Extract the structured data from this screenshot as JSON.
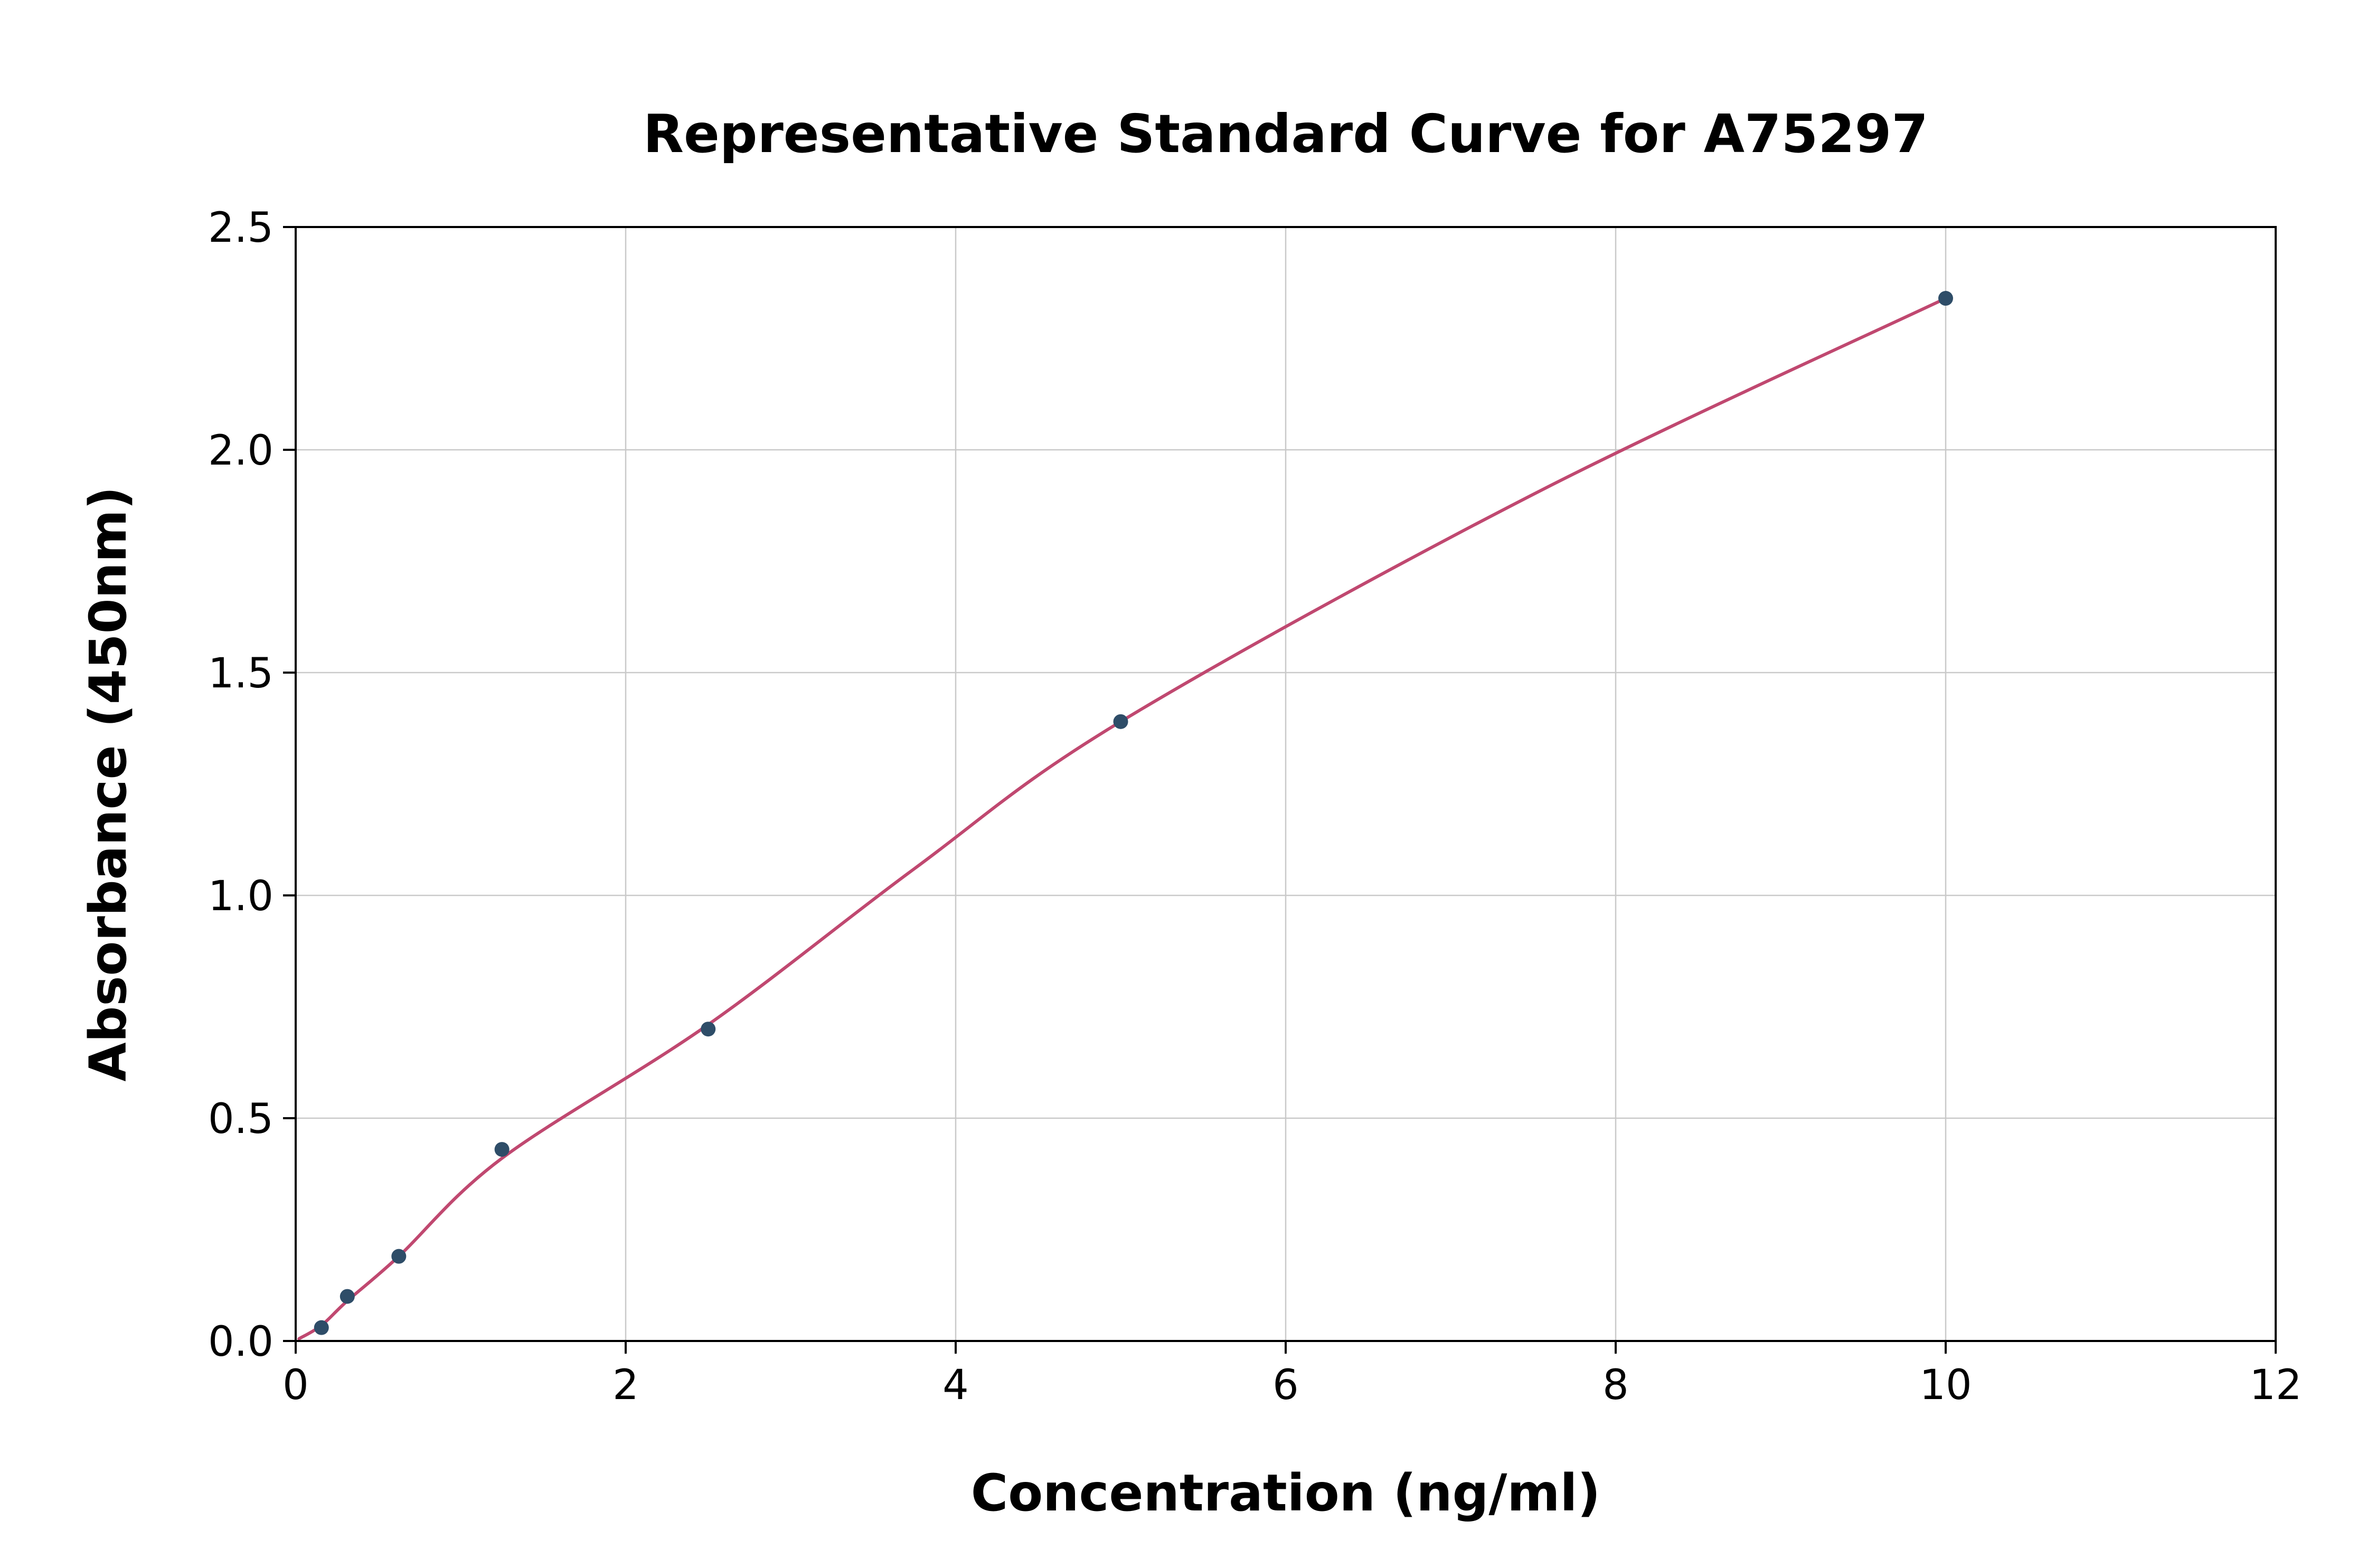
{
  "chart_data": {
    "type": "scatter",
    "title": "Representative Standard Curve for A75297",
    "xlabel": "Concentration (ng/ml)",
    "ylabel": "Absorbance (450nm)",
    "xlim": [
      0,
      12
    ],
    "ylim": [
      0,
      2.5
    ],
    "grid": true,
    "legend": false,
    "xticks": {
      "values": [
        0,
        2,
        4,
        6,
        8,
        10,
        12
      ],
      "labels": [
        "0",
        "2",
        "4",
        "6",
        "8",
        "10",
        "12"
      ]
    },
    "yticks": {
      "values": [
        0,
        0.5,
        1.0,
        1.5,
        2.0,
        2.5
      ],
      "labels": [
        "0.0",
        "0.5",
        "1.0",
        "1.5",
        "2.0",
        "2.5"
      ]
    },
    "points": [
      {
        "x": 0.156,
        "y": 0.03
      },
      {
        "x": 0.313,
        "y": 0.1
      },
      {
        "x": 0.625,
        "y": 0.19
      },
      {
        "x": 1.25,
        "y": 0.43
      },
      {
        "x": 2.5,
        "y": 0.7
      },
      {
        "x": 5.0,
        "y": 1.39
      },
      {
        "x": 10.0,
        "y": 2.34
      }
    ],
    "curve_points": [
      [
        0.02,
        0.005
      ],
      [
        0.156,
        0.035
      ],
      [
        0.313,
        0.09
      ],
      [
        0.625,
        0.19
      ],
      [
        1.25,
        0.41
      ],
      [
        2.5,
        0.71
      ],
      [
        3.75,
        1.06
      ],
      [
        5.0,
        1.39
      ],
      [
        7.5,
        1.9
      ],
      [
        10.0,
        2.34
      ]
    ],
    "colors": {
      "curve": "#c04870",
      "point": "#2e4d68",
      "grid": "#c9c9c9",
      "axis": "#000000",
      "text": "#000000",
      "background": "#ffffff"
    }
  }
}
